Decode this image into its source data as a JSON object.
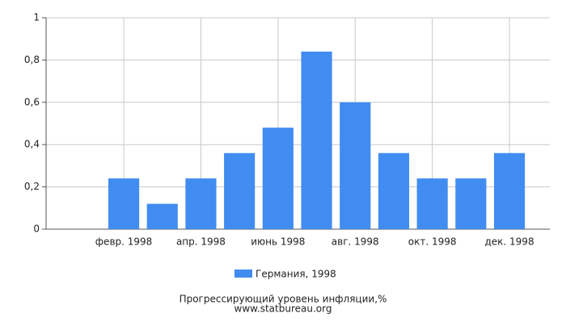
{
  "chart_data": {
    "type": "bar",
    "title": "Прогрессирующий уровень инфляции,%",
    "subtitle": "www.statbureau.org",
    "categories": [
      null,
      "февр. 1998",
      null,
      "апр. 1998",
      null,
      "июнь 1998",
      null,
      "авг. 1998",
      null,
      "окт. 1998",
      null,
      "дек. 1998"
    ],
    "series": [
      {
        "name": "Германия, 1998",
        "color": "#418cf0",
        "values": [
          0,
          0.24,
          0.12,
          0.24,
          0.36,
          0.48,
          0.84,
          0.6,
          0.36,
          0.24,
          0.24,
          0.36
        ]
      }
    ],
    "ylim": [
      0,
      1
    ],
    "yticks": [
      0,
      {
        "value": 0.2,
        "label": "0,2"
      },
      {
        "value": 0.4,
        "label": "0,4"
      },
      {
        "value": 0.6,
        "label": "0,6"
      },
      {
        "value": 0.8,
        "label": "0,8"
      },
      1
    ],
    "grid": true
  }
}
